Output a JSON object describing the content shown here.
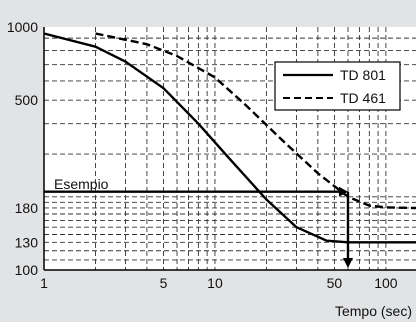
{
  "chart_data": {
    "type": "line",
    "xscale": "log",
    "yscale": "log",
    "xlim": [
      1,
      150
    ],
    "ylim": [
      100,
      1000
    ],
    "xticks": [
      1,
      5,
      10,
      50,
      100
    ],
    "xtick_labels": [
      "1",
      "5",
      "10",
      "50",
      "100"
    ],
    "yticks": [
      100,
      130,
      180,
      500,
      1000
    ],
    "ytick_labels": [
      "100",
      "130",
      "180",
      "500",
      "1000"
    ],
    "xlabel": "Tempo (sec)",
    "ylabel": "",
    "grid": true,
    "legend_position": "top-right",
    "series": [
      {
        "name": "TD 801",
        "style": "solid",
        "color": "#000000",
        "points": [
          [
            1,
            940
          ],
          [
            2,
            830
          ],
          [
            3,
            720
          ],
          [
            5,
            560
          ],
          [
            8,
            400
          ],
          [
            12,
            290
          ],
          [
            20,
            195
          ],
          [
            30,
            150
          ],
          [
            45,
            132
          ],
          [
            60,
            130
          ],
          [
            100,
            130
          ],
          [
            150,
            130
          ]
        ]
      },
      {
        "name": "TD 461",
        "style": "dashed",
        "color": "#000000",
        "points": [
          [
            2,
            940
          ],
          [
            4,
            850
          ],
          [
            6,
            760
          ],
          [
            10,
            620
          ],
          [
            15,
            480
          ],
          [
            25,
            340
          ],
          [
            40,
            250
          ],
          [
            60,
            200
          ],
          [
            80,
            184
          ],
          [
            100,
            181
          ],
          [
            150,
            180
          ]
        ]
      }
    ],
    "annotations": [
      {
        "text": "Esempio",
        "horizontal_at_y": 210,
        "x_from": 1,
        "x_to": 60,
        "vertical_at_x": 60,
        "arrow_to_y": 100
      }
    ]
  }
}
